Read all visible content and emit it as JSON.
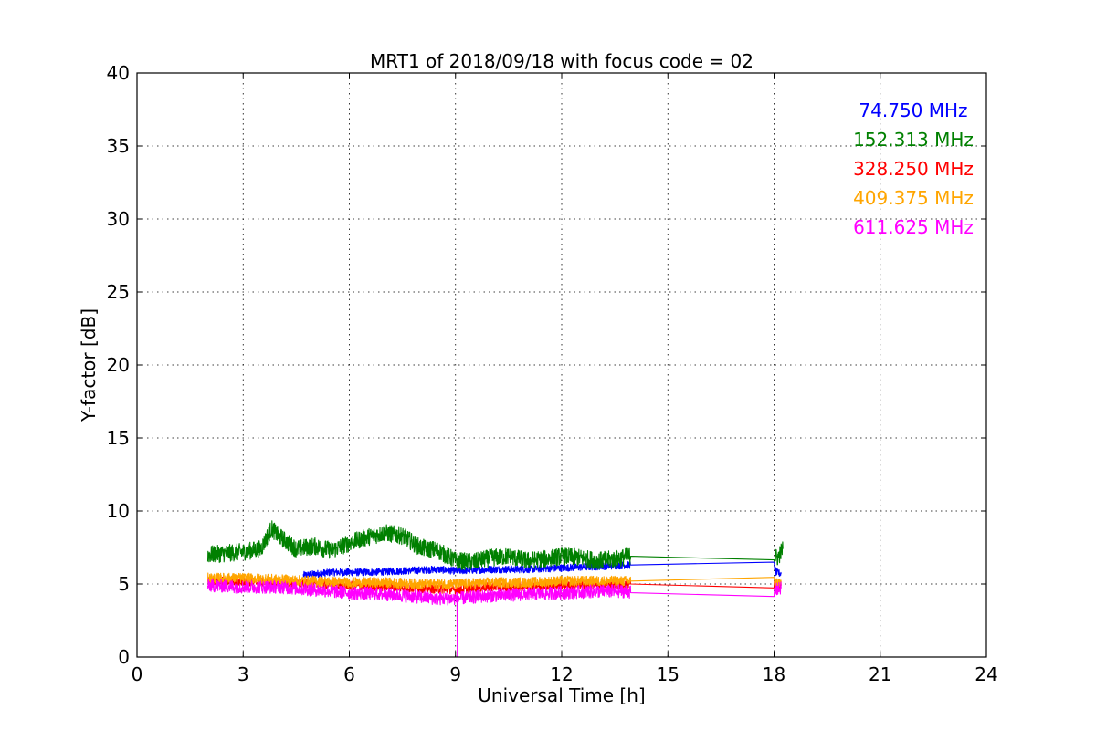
{
  "chart_data": {
    "type": "line",
    "title": "MRT1 of 2018/09/18 with focus code = 02",
    "xlabel": "Universal Time [h]",
    "ylabel": "Y-factor [dB]",
    "xlim": [
      0,
      24
    ],
    "ylim": [
      0,
      40
    ],
    "xticks": [
      0,
      3,
      6,
      9,
      12,
      15,
      18,
      21,
      24
    ],
    "yticks": [
      0,
      5,
      10,
      15,
      20,
      25,
      30,
      35,
      40
    ],
    "grid": true,
    "legend_position": "top-right",
    "series": [
      {
        "name": "74.750 MHz",
        "color": "#0000ff",
        "x": [
          4.7,
          5.5,
          6.5,
          7.5,
          8.5,
          9.0,
          10.0,
          11.0,
          12.0,
          13.0,
          13.9,
          13.95,
          18.0,
          18.05,
          18.2
        ],
        "y": [
          5.6,
          5.8,
          5.8,
          5.9,
          6.0,
          5.9,
          6.0,
          6.0,
          6.1,
          6.2,
          6.3,
          6.3,
          6.3,
          5.8,
          5.7
        ],
        "noise": 0.25
      },
      {
        "name": "152.313 MHz",
        "color": "#008000",
        "x": [
          2.0,
          2.5,
          3.0,
          3.5,
          3.8,
          4.0,
          4.5,
          5.0,
          5.5,
          6.0,
          6.5,
          7.0,
          7.5,
          8.0,
          8.5,
          9.0,
          9.5,
          10.0,
          10.5,
          11.0,
          11.5,
          12.0,
          12.5,
          13.0,
          13.5,
          13.9,
          13.95,
          18.0,
          18.1,
          18.25
        ],
        "y": [
          7.0,
          7.1,
          7.2,
          7.4,
          8.8,
          8.3,
          7.4,
          7.6,
          7.3,
          7.8,
          8.2,
          8.5,
          8.3,
          7.5,
          7.3,
          6.6,
          6.5,
          6.8,
          6.9,
          6.6,
          6.7,
          6.9,
          6.8,
          6.6,
          6.7,
          6.9,
          6.9,
          6.9,
          6.8,
          7.4
        ],
        "noise": 0.6
      },
      {
        "name": "328.250 MHz",
        "color": "#ff0000",
        "x": [
          2.0,
          4.0,
          6.0,
          8.0,
          9.0,
          10.0,
          12.0,
          13.9,
          13.95,
          18.0,
          18.05,
          18.2
        ],
        "y": [
          5.2,
          5.1,
          4.9,
          4.7,
          4.6,
          4.8,
          4.9,
          5.0,
          5.0,
          5.0,
          5.0,
          4.9
        ],
        "noise": 0.3
      },
      {
        "name": "409.375 MHz",
        "color": "#ffa500",
        "x": [
          2.0,
          3.0,
          4.0,
          5.0,
          6.0,
          7.0,
          8.0,
          9.0,
          10.0,
          11.0,
          12.0,
          13.0,
          13.9,
          13.95,
          18.0,
          18.05,
          18.2
        ],
        "y": [
          5.4,
          5.4,
          5.3,
          5.2,
          5.1,
          5.1,
          5.0,
          5.0,
          5.1,
          5.1,
          5.2,
          5.2,
          5.2,
          5.2,
          5.2,
          5.1,
          5.1
        ],
        "noise": 0.35
      },
      {
        "name": "611.625 MHz",
        "color": "#ff00ff",
        "x": [
          2.0,
          3.0,
          4.0,
          5.0,
          6.0,
          7.0,
          8.0,
          8.5,
          9.0,
          9.5,
          10.0,
          11.0,
          12.0,
          13.0,
          13.9,
          13.95,
          18.0,
          18.05,
          18.2
        ],
        "y": [
          4.9,
          4.8,
          4.8,
          4.6,
          4.4,
          4.3,
          4.1,
          4.0,
          4.0,
          4.1,
          4.2,
          4.3,
          4.4,
          4.5,
          4.5,
          4.4,
          4.3,
          4.6,
          4.7
        ],
        "noise": 0.45,
        "dropout": {
          "x": 9.05,
          "y": 0
        }
      }
    ]
  }
}
